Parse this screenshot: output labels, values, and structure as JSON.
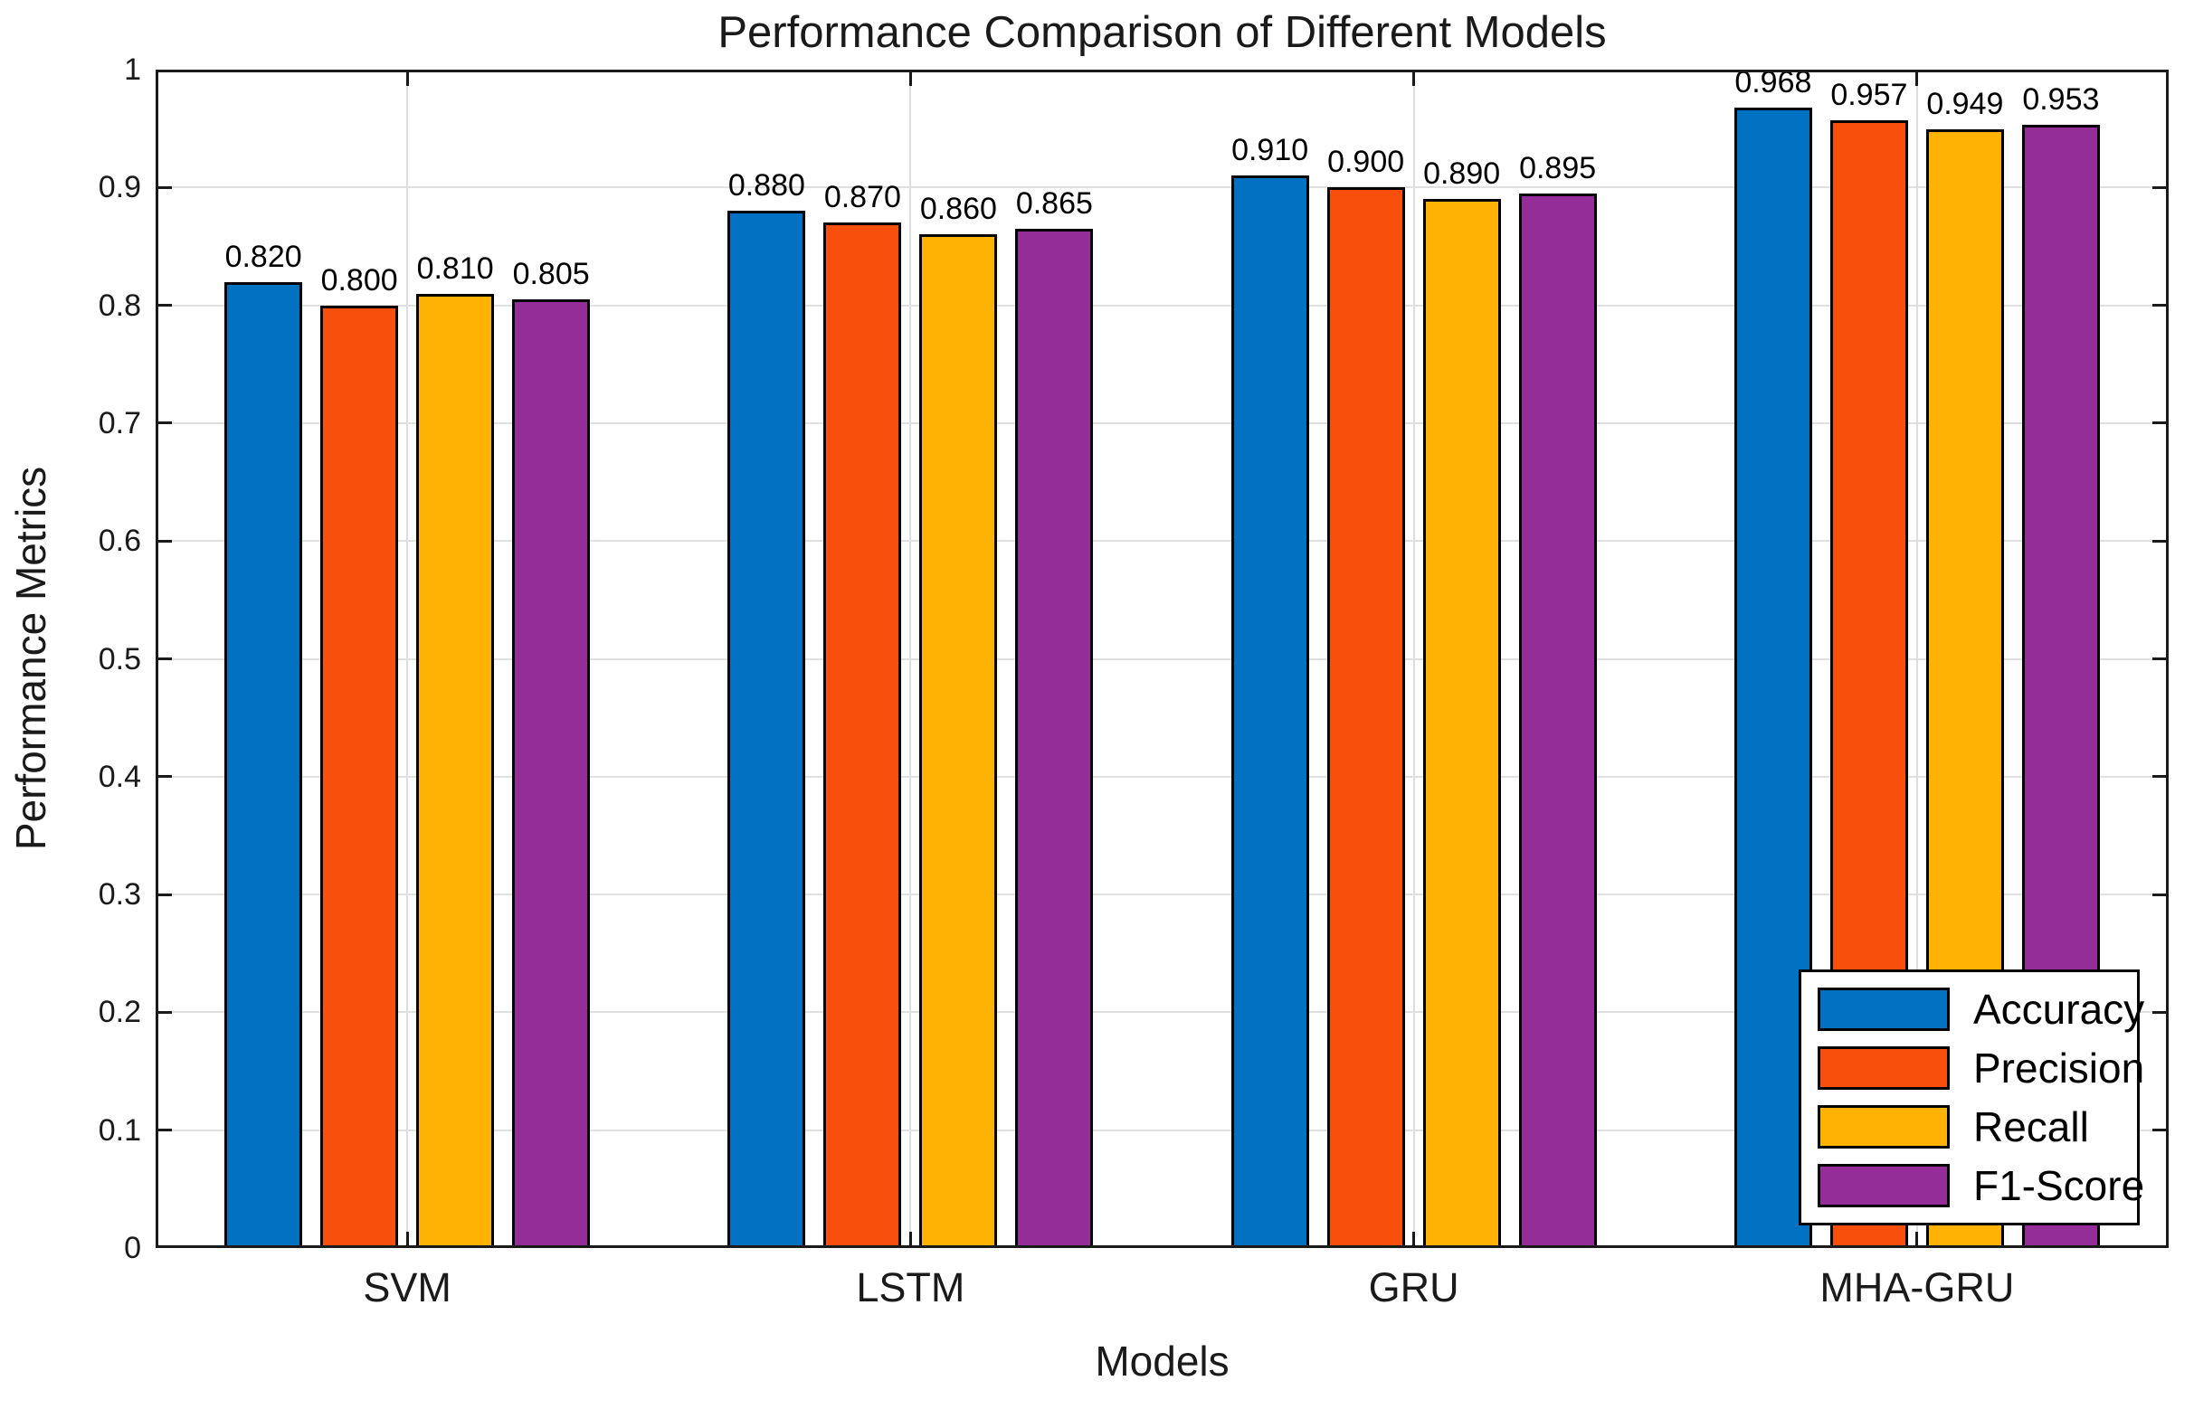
{
  "figure": {
    "title": "Performance Comparison of Different Models"
  },
  "chart_data": {
    "type": "bar",
    "title": "Performance Comparison of Different Models",
    "xlabel": "Models",
    "ylabel": "Performance Metrics",
    "categories": [
      "SVM",
      "LSTM",
      "GRU",
      "MHA-GRU"
    ],
    "series": [
      {
        "name": "Accuracy",
        "color": "#0072C1",
        "values": [
          0.82,
          0.88,
          0.91,
          0.968
        ],
        "labels": [
          "0.820",
          "0.880",
          "0.910",
          "0.968"
        ]
      },
      {
        "name": "Precision",
        "color": "#F8500C",
        "values": [
          0.8,
          0.87,
          0.9,
          0.957
        ],
        "labels": [
          "0.800",
          "0.870",
          "0.900",
          "0.957"
        ]
      },
      {
        "name": "Recall",
        "color": "#FEB204",
        "values": [
          0.81,
          0.86,
          0.89,
          0.949
        ],
        "labels": [
          "0.810",
          "0.860",
          "0.890",
          "0.949"
        ]
      },
      {
        "name": "F1-Score",
        "color": "#942D97",
        "values": [
          0.805,
          0.865,
          0.895,
          0.953
        ],
        "labels": [
          "0.805",
          "0.865",
          "0.895",
          "0.953"
        ]
      }
    ],
    "ylim": [
      0,
      1
    ],
    "yticks": [
      0,
      0.1,
      0.2,
      0.3,
      0.4,
      0.5,
      0.6,
      0.7,
      0.8,
      0.9,
      1
    ],
    "ytick_labels": [
      "0",
      "0.1",
      "0.2",
      "0.3",
      "0.4",
      "0.5",
      "0.6",
      "0.7",
      "0.8",
      "0.9",
      "1"
    ],
    "grid": true,
    "legend_position": "bottom-right",
    "bar_edge_color": "#000000",
    "axis_color": "#1A1A1A",
    "grid_color": "#E0E0E0"
  }
}
